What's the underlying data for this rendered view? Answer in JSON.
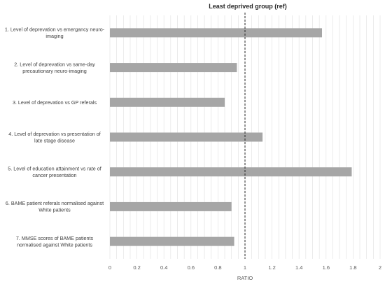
{
  "chart_data": {
    "type": "bar",
    "orientation": "horizontal",
    "title": "",
    "xlabel": "RATIO",
    "ylabel": "",
    "xlim": [
      0,
      2
    ],
    "xticks": [
      "0",
      "0.2",
      "0.4",
      "0.6",
      "0.8",
      "1",
      "1.2",
      "1.4",
      "1.6",
      "1.8",
      "2"
    ],
    "grid": true,
    "legend": "none",
    "bar_color": "#a6a6a6",
    "reference_line": {
      "value": 1,
      "label": "Least deprived group (ref)",
      "style": "dashed"
    },
    "categories": [
      [
        "1. Level of deprevation vs emergancy neuro-",
        "imaging"
      ],
      [
        "2. Level of deprevation vs same-day",
        "precautionary neuro-imaging"
      ],
      [
        "3. Level of deprevation vs GP referals"
      ],
      [
        "4. Level of deprevation vs presentation of",
        "late stage disease"
      ],
      [
        "5. Level of education attainment vs rate of",
        "cancer presentation"
      ],
      [
        "6. BAME patient referals normalised against",
        "White patients"
      ],
      [
        "7. MMSE scores of BAME patients",
        "normalised against White patients"
      ]
    ],
    "values": [
      1.57,
      0.94,
      0.85,
      1.13,
      1.79,
      0.9,
      0.92
    ]
  }
}
